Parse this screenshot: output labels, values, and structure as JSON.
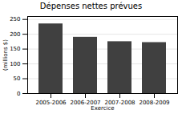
{
  "chart_data": {
    "type": "bar",
    "title": "Dépenses nettes prévues",
    "categories": [
      "2005-2006",
      "2006-2007",
      "2007-2008",
      "2008-2009"
    ],
    "values": [
      235,
      190,
      175,
      172
    ],
    "color": "#404040",
    "xlabel": "Exercice",
    "ylabel": "(millions $)",
    "ylim": [
      0,
      260
    ],
    "yticks": [
      0,
      50,
      100,
      150,
      200,
      250
    ],
    "grid": true
  }
}
